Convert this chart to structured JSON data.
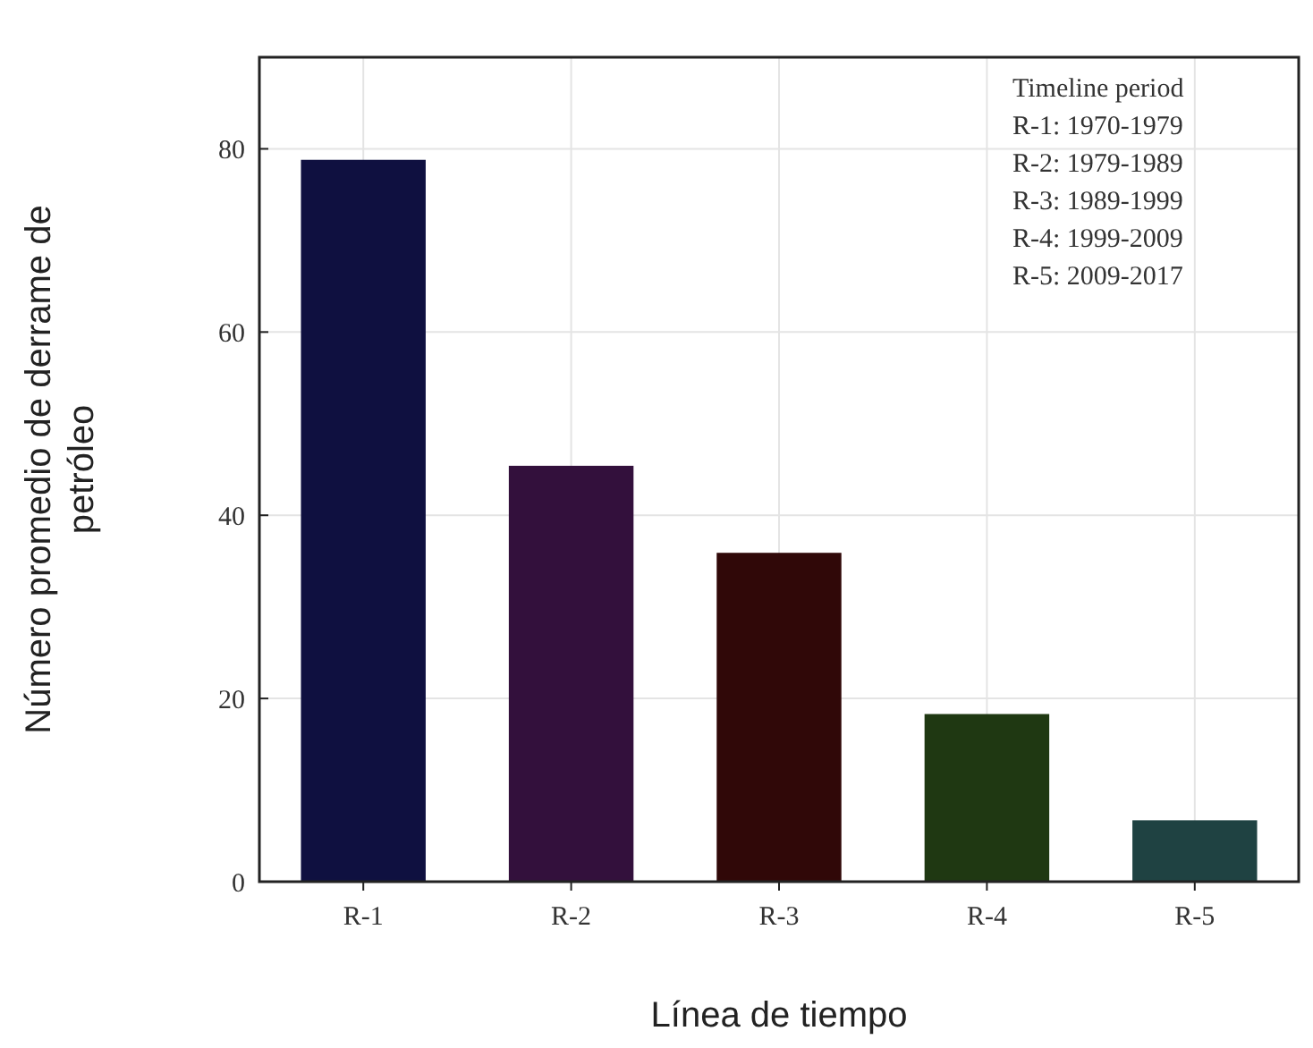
{
  "chart_data": {
    "type": "bar",
    "xlabel": "Línea de tiempo",
    "ylabel": "Número promedio de derrame de petróleo",
    "categories": [
      "R-1",
      "R-2",
      "R-3",
      "R-4",
      "R-5"
    ],
    "values": [
      78.8,
      45.4,
      35.9,
      18.3,
      6.7
    ],
    "colors": [
      "#0f1040",
      "#33103c",
      "#300808",
      "#1f3812",
      "#1f4242"
    ],
    "ylim": [
      0,
      90
    ],
    "yticks": [
      0,
      20,
      40,
      60,
      80
    ],
    "grid": true,
    "annotations": [
      "Timeline period",
      "R-1: 1970-1979",
      "R-2: 1979-1989",
      "R-3: 1989-1999",
      "R-4: 1999-2009",
      "R-5: 2009-2017"
    ]
  }
}
